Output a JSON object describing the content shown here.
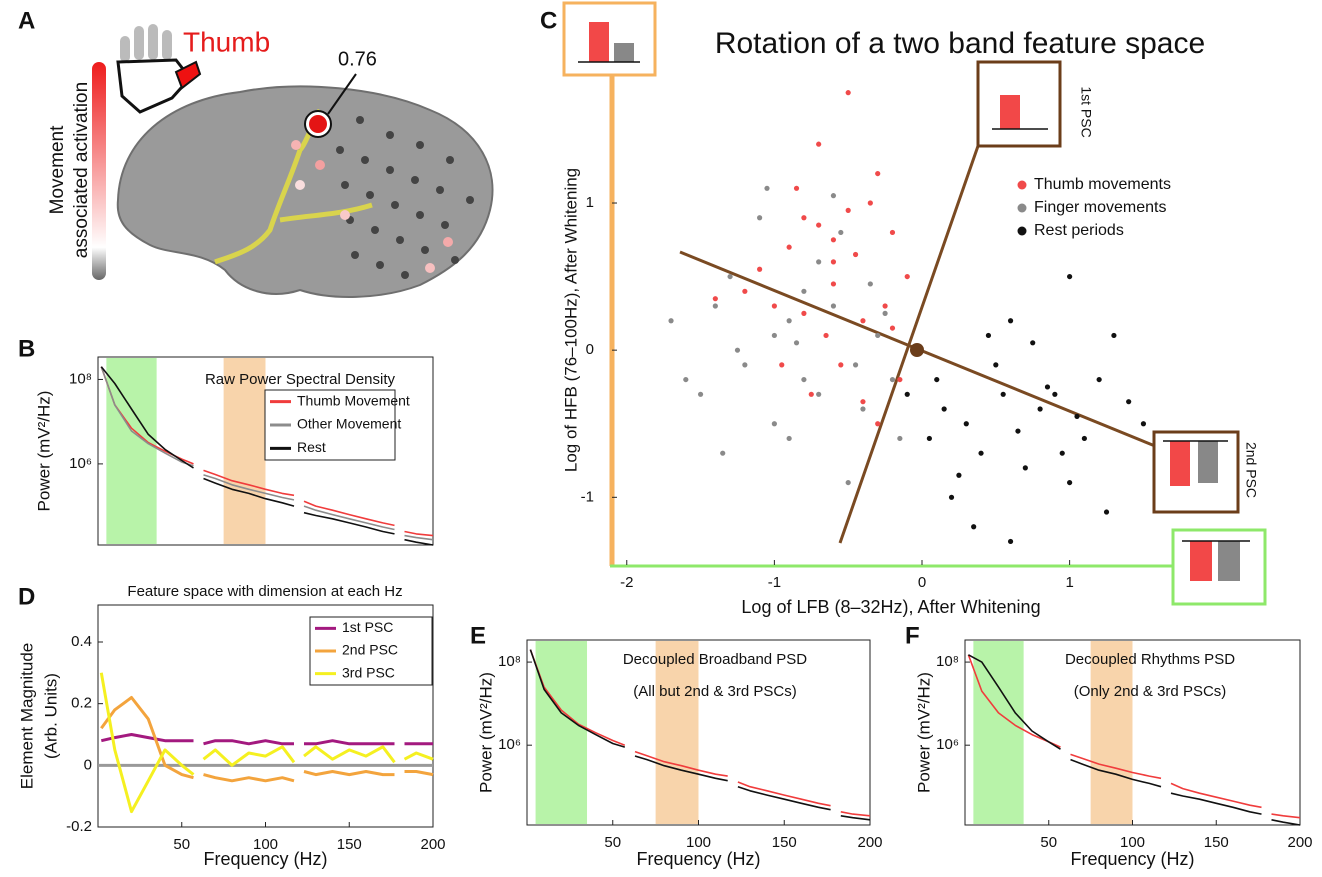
{
  "panel_a": {
    "panel": "A",
    "title": "Thumb",
    "value_label": "0.76",
    "colorbar_label": [
      "Movement",
      "associated activation"
    ]
  },
  "chart_data": [
    {
      "type": "line",
      "panel": "B",
      "title": "Raw Power Spectral Density",
      "ylabel": [
        "Power (mV²/Hz)"
      ],
      "log_y": true,
      "xlim": [
        0,
        200
      ],
      "ylim": [
        12000,
        340000000
      ],
      "yticks": [
        {
          "value": 100000000,
          "label": "10⁸"
        },
        {
          "value": 1000000,
          "label": "10⁶"
        }
      ],
      "bands": [
        {
          "range": [
            5,
            35
          ],
          "color": "#b8f3a9"
        },
        {
          "range": [
            75,
            100
          ],
          "color": "#f8d4ab"
        }
      ],
      "x": [
        2,
        10,
        20,
        30,
        40,
        50,
        57,
        60,
        63,
        70,
        80,
        90,
        100,
        110,
        117,
        120,
        123,
        130,
        140,
        150,
        160,
        170,
        177,
        180,
        183,
        190,
        200
      ],
      "series": [
        {
          "name": "Thumb Movement",
          "color": "#f03c3c",
          "values": [
            200000000.0,
            25000000.0,
            7000000.0,
            3200000.0,
            2000000.0,
            1300000.0,
            1000000.0,
            null,
            700000.0,
            560000.0,
            400000.0,
            320000.0,
            250000.0,
            200000.0,
            180000.0,
            null,
            130000.0,
            100000.0,
            80000.0,
            63000.0,
            50000.0,
            40000.0,
            35000.0,
            null,
            25000.0,
            22000.0,
            20000.0
          ]
        },
        {
          "name": "Other Movement",
          "color": "#8c8c8c",
          "values": [
            200000000.0,
            25000000.0,
            6000000.0,
            3000000.0,
            1800000.0,
            1100000.0,
            900000.0,
            null,
            550000.0,
            450000.0,
            320000.0,
            250000.0,
            200000.0,
            160000.0,
            140000.0,
            null,
            100000.0,
            80000.0,
            63000.0,
            50000.0,
            40000.0,
            32000.0,
            28000.0,
            null,
            20000.0,
            18000.0,
            16000.0
          ]
        },
        {
          "name": "Rest",
          "color": "#111111",
          "values": [
            200000000.0,
            80000000.0,
            20000000.0,
            5000000.0,
            2200000.0,
            1200000.0,
            800000.0,
            null,
            450000.0,
            350000.0,
            250000.0,
            200000.0,
            150000.0,
            120000.0,
            100000.0,
            null,
            70000.0,
            60000.0,
            50000.0,
            40000.0,
            32000.0,
            25000.0,
            22000.0,
            null,
            16000.0,
            14000.0,
            12000.0
          ]
        }
      ]
    },
    {
      "type": "scatter",
      "panel": "C",
      "title": "Rotation of a two band feature space",
      "xlabel": "Log of LFB (8–32Hz), After Whitening",
      "ylabel": [
        "Log of HFB (76–100Hz), After Whitening"
      ],
      "xlim": [
        -2.1,
        1.68
      ],
      "ylim": [
        -1.46,
        1.87
      ],
      "xticks": [
        -2,
        -1,
        0,
        1
      ],
      "yticks": [
        -1,
        0,
        1
      ],
      "annotations": [
        "1st PSC",
        "2nd PSC"
      ],
      "series": [
        {
          "name": "Thumb movements",
          "color": "#f04a4a",
          "x": [
            -0.5,
            -0.8,
            -0.3,
            -0.6,
            -1.0,
            -0.2,
            -0.7,
            -0.4,
            -0.9,
            -0.1,
            -0.55,
            -0.35,
            -1.2,
            -0.65,
            -0.25,
            -0.75,
            -0.45,
            -0.85,
            -0.15,
            -0.6,
            -1.4,
            -0.3,
            -0.5,
            -0.95,
            -0.2,
            -0.7,
            -1.1,
            -0.4,
            -0.8,
            -0.6
          ],
          "y": [
            1.75,
            0.9,
            1.2,
            0.6,
            0.3,
            0.8,
            1.4,
            0.2,
            0.7,
            0.5,
            -0.1,
            1.0,
            0.4,
            0.1,
            0.3,
            -0.3,
            0.65,
            1.1,
            -0.2,
            0.45,
            0.35,
            -0.5,
            0.95,
            -0.1,
            0.15,
            0.85,
            0.55,
            -0.35,
            0.25,
            0.75
          ]
        },
        {
          "name": "Finger movements",
          "color": "#8a8a8a",
          "x": [
            -1.7,
            -1.3,
            -1.0,
            -0.8,
            -1.1,
            -0.6,
            -0.4,
            -0.9,
            -1.5,
            -0.3,
            -0.7,
            -1.2,
            -0.5,
            -0.2,
            -1.4,
            -0.8,
            -1.0,
            -0.6,
            -0.35,
            -1.25,
            -0.9,
            -0.45,
            -1.6,
            -0.7,
            -0.15,
            -1.05,
            -0.55,
            -0.85,
            -0.25,
            -1.35
          ],
          "y": [
            0.2,
            0.5,
            0.1,
            -0.2,
            0.9,
            0.3,
            -0.4,
            -0.6,
            -0.3,
            0.1,
            0.6,
            -0.1,
            -0.9,
            -0.2,
            0.3,
            0.4,
            -0.5,
            1.05,
            0.45,
            0.0,
            0.2,
            -0.1,
            -0.2,
            -0.3,
            -0.6,
            1.1,
            0.8,
            0.05,
            0.25,
            -0.7
          ]
        },
        {
          "name": "Rest periods",
          "color": "#111111",
          "x": [
            0.1,
            0.3,
            0.5,
            0.7,
            0.9,
            1.1,
            1.3,
            0.2,
            0.4,
            0.6,
            0.8,
            1.0,
            1.2,
            1.5,
            0.05,
            0.35,
            0.55,
            0.75,
            0.95,
            1.25,
            0.15,
            0.45,
            0.65,
            0.85,
            1.05,
            -0.1,
            0.25,
            1.4,
            0.6,
            1.0
          ],
          "y": [
            -0.2,
            -0.5,
            -0.1,
            -0.8,
            -0.3,
            -0.6,
            0.1,
            -1.0,
            -0.7,
            0.2,
            -0.4,
            -0.9,
            -0.2,
            -0.5,
            -0.6,
            -1.2,
            -0.3,
            0.05,
            -0.7,
            -1.1,
            -0.4,
            0.1,
            -0.55,
            -0.25,
            -0.45,
            -0.3,
            -0.85,
            -0.35,
            -1.3,
            0.5
          ]
        }
      ]
    },
    {
      "type": "line",
      "panel": "D",
      "title": "Feature space with dimension at each Hz",
      "ylabel": [
        "Element Magnitude",
        "(Arb. Units)"
      ],
      "xlabel": "Frequency (Hz)",
      "xlim": [
        0,
        200
      ],
      "ylim": [
        -0.2,
        0.52
      ],
      "xticks": [
        50,
        100,
        150,
        200
      ],
      "yticks": [
        -0.2,
        0,
        0.2,
        0.4
      ],
      "zero_line": true,
      "x": [
        2,
        10,
        20,
        30,
        40,
        50,
        57,
        60,
        63,
        70,
        80,
        90,
        100,
        110,
        117,
        120,
        123,
        130,
        140,
        150,
        160,
        170,
        177,
        180,
        183,
        190,
        200
      ],
      "series": [
        {
          "name": "1st PSC",
          "color": "#a3197f",
          "values": [
            0.08,
            0.09,
            0.1,
            0.09,
            0.08,
            0.08,
            0.08,
            null,
            0.07,
            0.08,
            0.08,
            0.07,
            0.08,
            0.07,
            0.07,
            null,
            0.07,
            0.07,
            0.08,
            0.07,
            0.07,
            0.07,
            0.07,
            null,
            0.07,
            0.07,
            0.07
          ]
        },
        {
          "name": "2nd PSC",
          "color": "#f3a43d",
          "values": [
            0.12,
            0.18,
            0.22,
            0.15,
            0.0,
            -0.03,
            -0.04,
            null,
            -0.03,
            -0.04,
            -0.05,
            -0.04,
            -0.05,
            -0.04,
            -0.05,
            null,
            -0.02,
            -0.03,
            -0.02,
            -0.03,
            -0.02,
            -0.03,
            -0.03,
            null,
            -0.02,
            -0.02,
            -0.03
          ]
        },
        {
          "name": "3rd PSC",
          "color": "#f5f020",
          "values": [
            0.3,
            0.05,
            -0.15,
            -0.05,
            0.05,
            0.0,
            -0.03,
            null,
            0.02,
            0.05,
            0.0,
            0.04,
            0.03,
            0.06,
            0.01,
            null,
            0.03,
            0.06,
            0.02,
            0.05,
            0.03,
            0.06,
            0.01,
            null,
            0.02,
            0.04,
            0.02
          ]
        }
      ]
    },
    {
      "type": "line",
      "panel": "E",
      "title": "Decoupled Broadband PSD",
      "subtitle": "(All but 2nd & 3rd PSCs)",
      "ylabel": [
        "Power (mV²/Hz)"
      ],
      "log_y": true,
      "xlabel": "Frequency (Hz)",
      "xlim": [
        0,
        200
      ],
      "ylim": [
        12000,
        340000000
      ],
      "xticks": [
        50,
        100,
        150,
        200
      ],
      "yticks": [
        {
          "value": 100000000,
          "label": "10⁸"
        },
        {
          "value": 1000000,
          "label": "10⁶"
        }
      ],
      "bands": [
        {
          "range": [
            5,
            35
          ],
          "color": "#b8f3a9"
        },
        {
          "range": [
            75,
            100
          ],
          "color": "#f8d4ab"
        }
      ],
      "x": [
        2,
        10,
        20,
        30,
        40,
        50,
        57,
        60,
        63,
        70,
        80,
        90,
        100,
        110,
        117,
        120,
        123,
        130,
        140,
        150,
        160,
        170,
        177,
        180,
        183,
        190,
        200
      ],
      "series": [
        {
          "color": "#f03c3c",
          "values": [
            200000000.0,
            25000000.0,
            7000000.0,
            3200000.0,
            2000000.0,
            1300000.0,
            1000000.0,
            null,
            700000.0,
            560000.0,
            400000.0,
            320000.0,
            250000.0,
            200000.0,
            180000.0,
            null,
            130000.0,
            100000.0,
            80000.0,
            63000.0,
            50000.0,
            40000.0,
            35000.0,
            null,
            25000.0,
            22000.0,
            20000.0
          ]
        },
        {
          "color": "#111111",
          "values": [
            200000000.0,
            22000000.0,
            6000000.0,
            3000000.0,
            1800000.0,
            1100000.0,
            900000.0,
            null,
            550000.0,
            450000.0,
            320000.0,
            250000.0,
            200000.0,
            160000.0,
            140000.0,
            null,
            100000.0,
            80000.0,
            63000.0,
            50000.0,
            40000.0,
            32000.0,
            28000.0,
            null,
            20000.0,
            18000.0,
            16000.0
          ]
        }
      ]
    },
    {
      "type": "line",
      "panel": "F",
      "title": "Decoupled Rhythms PSD",
      "subtitle": "(Only 2nd & 3rd PSCs)",
      "ylabel": [
        "Power (mV²/Hz)"
      ],
      "log_y": true,
      "xlabel": "Frequency (Hz)",
      "xlim": [
        0,
        200
      ],
      "ylim": [
        12000,
        340000000
      ],
      "xticks": [
        50,
        100,
        150,
        200
      ],
      "yticks": [
        {
          "value": 100000000,
          "label": "10⁸"
        },
        {
          "value": 1000000,
          "label": "10⁶"
        }
      ],
      "bands": [
        {
          "range": [
            5,
            35
          ],
          "color": "#b8f3a9"
        },
        {
          "range": [
            75,
            100
          ],
          "color": "#f8d4ab"
        }
      ],
      "x": [
        2,
        10,
        20,
        30,
        40,
        50,
        57,
        60,
        63,
        70,
        80,
        90,
        100,
        110,
        117,
        120,
        123,
        130,
        140,
        150,
        160,
        170,
        177,
        180,
        183,
        190,
        200
      ],
      "series": [
        {
          "color": "#f03c3c",
          "values": [
            150000000.0,
            20000000.0,
            6000000.0,
            3000000.0,
            1800000.0,
            1200000.0,
            900000.0,
            null,
            600000.0,
            480000.0,
            350000.0,
            280000.0,
            220000.0,
            180000.0,
            160000.0,
            null,
            120000.0,
            90000.0,
            70000.0,
            56000.0,
            45000.0,
            36000.0,
            32000.0,
            null,
            22000.0,
            20000.0,
            18000.0
          ]
        },
        {
          "color": "#111111",
          "values": [
            150000000.0,
            100000000.0,
            25000000.0,
            6000000.0,
            2200000.0,
            1200000.0,
            800000.0,
            null,
            450000.0,
            350000.0,
            250000.0,
            200000.0,
            150000.0,
            120000.0,
            100000.0,
            null,
            70000.0,
            60000.0,
            50000.0,
            40000.0,
            32000.0,
            25000.0,
            22000.0,
            null,
            16000.0,
            14000.0,
            12000.0
          ]
        }
      ]
    }
  ]
}
